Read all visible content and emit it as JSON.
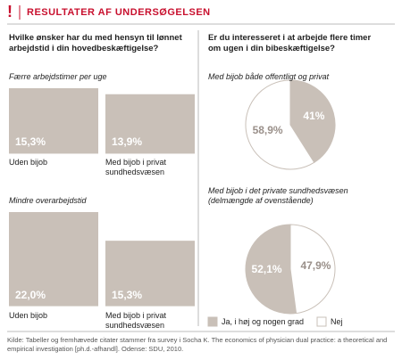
{
  "title": "RESULTATER AF UNDERSØGELSEN",
  "questions": [
    "Hvilke ønsker har du med hensyn til lønnet arbejdstid i din hovedbeskæftigelse?",
    "Er du interesseret i at arbejde flere timer om ugen i din bibeskæftigelse?"
  ],
  "source": "Kilde: Tabeller og fremhævede citater stammer fra survey i Socha K. The economics of physician dual practice: a theoretical and empirical investigation [ph.d.-afhandl]. Odense: SDU, 2010.",
  "chart_data": [
    {
      "type": "square",
      "subtitle": "Færre arbejdstimer per uge",
      "categories": [
        "Uden bijob",
        "Med bijob i privat sundhedsvæsen"
      ],
      "values": [
        15.3,
        13.9
      ],
      "value_labels": [
        "15,3%",
        "13,9%"
      ],
      "color": "#c9c0b8"
    },
    {
      "type": "square",
      "subtitle": "Mindre overarbejdstid",
      "categories": [
        "Uden bijob",
        "Med bijob i privat sundhedsvæsen"
      ],
      "values": [
        22.0,
        15.3
      ],
      "value_labels": [
        "22,0%",
        "15,3%"
      ],
      "color": "#c9c0b8"
    },
    {
      "type": "pie",
      "subtitle": "Med bijob både offentligt og privat",
      "categories": [
        "Ja, i høj og nogen grad",
        "Nej"
      ],
      "values": [
        41,
        58.9
      ],
      "value_labels": [
        "41%",
        "58,9%"
      ],
      "colors": [
        "#c9c0b8",
        "#ffffff"
      ],
      "direction": "clockwise",
      "legend": false
    },
    {
      "type": "pie",
      "subtitle": "Med bijob i det private sundhedsvæsen (delmængde af ovenstående)",
      "categories": [
        "Ja, i høj og nogen grad",
        "Nej"
      ],
      "values": [
        52.1,
        47.9
      ],
      "value_labels": [
        "52,1%",
        "47,9%"
      ],
      "colors": [
        "#c9c0b8",
        "#ffffff"
      ],
      "direction": "counterclockwise",
      "legend": true
    }
  ]
}
